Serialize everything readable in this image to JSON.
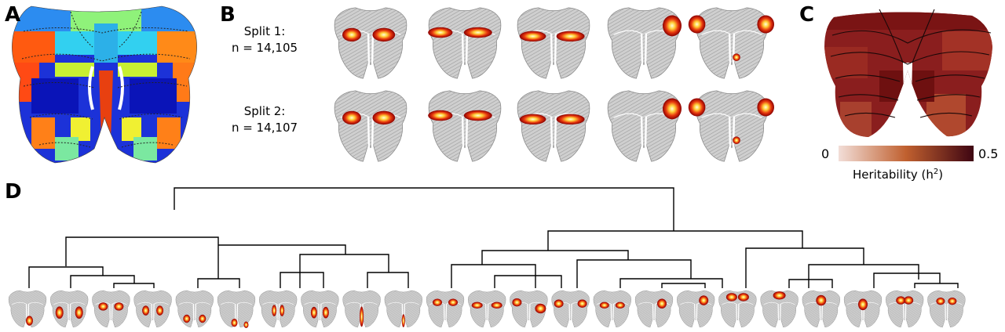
{
  "panels": {
    "a": "A",
    "b": "B",
    "c": "C",
    "d": "D"
  },
  "panel_b": {
    "split1_name": "Split 1:",
    "split1_n": "n = 14,105",
    "split2_name": "Split 2:",
    "split2_n": "n = 14,107"
  },
  "panel_c": {
    "colorbar_min": "0",
    "colorbar_max": "0.5",
    "colorbar_title_base": "Heritability (h",
    "colorbar_title_sup": "2",
    "colorbar_title_end": ")",
    "colors": {
      "low": "#f2ded8",
      "mid": "#c0602f",
      "high": "#3e0512"
    }
  },
  "panel_d": {
    "leaf_count": 23
  }
}
